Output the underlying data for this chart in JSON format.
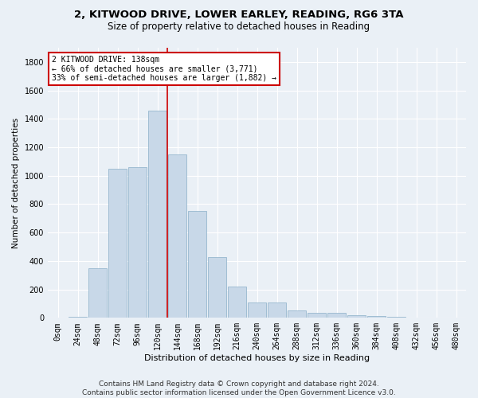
{
  "title1": "2, KITWOOD DRIVE, LOWER EARLEY, READING, RG6 3TA",
  "title2": "Size of property relative to detached houses in Reading",
  "xlabel": "Distribution of detached houses by size in Reading",
  "ylabel": "Number of detached properties",
  "bar_color": "#c8d8e8",
  "bar_edge_color": "#8aafc8",
  "categories": [
    "0sqm",
    "24sqm",
    "48sqm",
    "72sqm",
    "96sqm",
    "120sqm",
    "144sqm",
    "168sqm",
    "192sqm",
    "216sqm",
    "240sqm",
    "264sqm",
    "288sqm",
    "312sqm",
    "336sqm",
    "360sqm",
    "384sqm",
    "408sqm",
    "432sqm",
    "456sqm",
    "480sqm"
  ],
  "values": [
    0,
    10,
    350,
    1050,
    1060,
    1460,
    1150,
    750,
    430,
    220,
    110,
    110,
    50,
    35,
    35,
    20,
    15,
    5,
    0,
    0,
    0
  ],
  "vline_color": "#cc0000",
  "annotation_text": "2 KITWOOD DRIVE: 138sqm\n← 66% of detached houses are smaller (3,771)\n33% of semi-detached houses are larger (1,882) →",
  "annotation_box_color": "#ffffff",
  "annotation_box_edge_color": "#cc0000",
  "ylim": [
    0,
    1900
  ],
  "yticks": [
    0,
    200,
    400,
    600,
    800,
    1000,
    1200,
    1400,
    1600,
    1800
  ],
  "footer1": "Contains HM Land Registry data © Crown copyright and database right 2024.",
  "footer2": "Contains public sector information licensed under the Open Government Licence v3.0.",
  "background_color": "#eaf0f6",
  "grid_color": "#ffffff",
  "title1_fontsize": 9.5,
  "title2_fontsize": 8.5,
  "xlabel_fontsize": 8,
  "ylabel_fontsize": 7.5,
  "tick_fontsize": 7,
  "annot_fontsize": 7,
  "footer_fontsize": 6.5
}
